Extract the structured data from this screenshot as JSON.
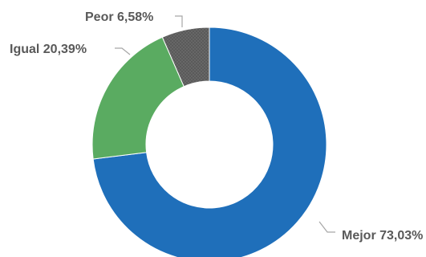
{
  "chart_data": {
    "type": "pie",
    "donut": true,
    "categories": [
      "Mejor",
      "Igual",
      "Peor"
    ],
    "values": [
      73.03,
      20.39,
      6.58
    ],
    "value_labels": [
      "73,03%",
      "20,39%",
      "6,58%"
    ],
    "colors": [
      "#1f6fba",
      "#5aab61",
      "#595959"
    ],
    "start": "12 o'clock",
    "direction": "clockwise",
    "legend": "none"
  }
}
